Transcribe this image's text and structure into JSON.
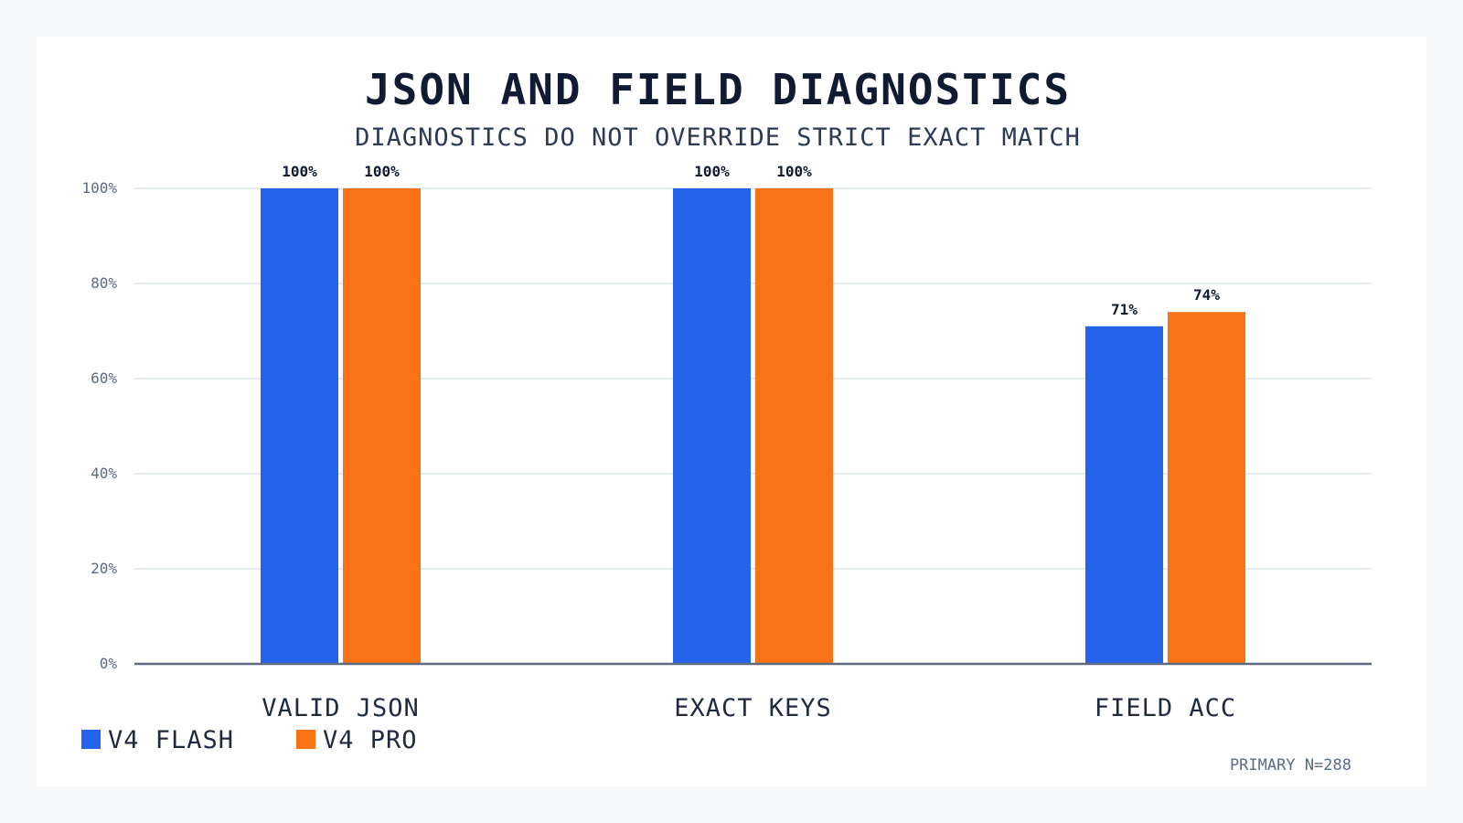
{
  "colors": {
    "background": "#f7f8fa",
    "card": "#ffffff",
    "series_flash": "#2563eb",
    "series_pro": "#f97316",
    "grid": "#dce3ee",
    "axis": "#5e6b7f"
  },
  "footnote": "PRIMARY N=288",
  "chart_data": {
    "type": "bar",
    "title": "JSON AND FIELD DIAGNOSTICS",
    "subtitle": "DIAGNOSTICS DO NOT OVERRIDE STRICT EXACT MATCH",
    "xlabel": "",
    "ylabel": "",
    "categories": [
      "VALID JSON",
      "EXACT KEYS",
      "FIELD ACC"
    ],
    "series": [
      {
        "name": "V4 FLASH",
        "values": [
          100,
          100,
          71
        ],
        "labels": [
          "100%",
          "100%",
          "71%"
        ],
        "color": "#2563eb"
      },
      {
        "name": "V4 PRO",
        "values": [
          100,
          100,
          74
        ],
        "labels": [
          "100%",
          "100%",
          "74%"
        ],
        "color": "#f97316"
      }
    ],
    "ylim": [
      0,
      100
    ],
    "yticks": [
      0,
      20,
      40,
      60,
      80,
      100
    ],
    "ytick_labels": [
      "0%",
      "20%",
      "40%",
      "60%",
      "80%",
      "100%"
    ],
    "grid": true,
    "legend": "bottom-left"
  }
}
